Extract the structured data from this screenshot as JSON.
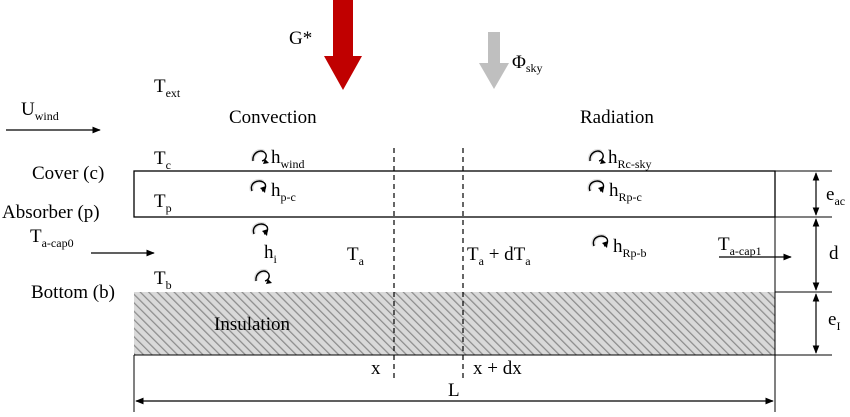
{
  "labels": {
    "g_star": "G*",
    "phi_sky": "Φ",
    "phi_sky_sub": "sky",
    "t_ext": "T",
    "t_ext_sub": "ext",
    "u_wind": "U",
    "u_wind_sub": "wind",
    "convection": "Convection",
    "radiation": "Radiation",
    "cover": "Cover (c)",
    "absorber": "Absorber (p)",
    "bottom": "Bottom (b)",
    "t_c": "T",
    "t_c_sub": "c",
    "t_p": "T",
    "t_p_sub": "p",
    "t_b": "T",
    "t_b_sub": "b",
    "h_wind": "h",
    "h_wind_sub": "wind",
    "h_pc": "h",
    "h_pc_sub": "p-c",
    "h_i": "h",
    "h_i_sub": "i",
    "h_rc_sky": "h",
    "h_rc_sky_sub": "Rc-sky",
    "h_rp_c": "h",
    "h_rp_c_sub": "Rp-c",
    "h_rp_b": "h",
    "h_rp_b_sub": "Rp-b",
    "t_a_cap0": "T",
    "t_a_cap0_sub": "a-cap0",
    "t_a_cap1": "T",
    "t_a_cap1_sub": "a-cap1",
    "t_a": "T",
    "t_a_sub": "a",
    "t_a_dt_a": "T",
    "t_a_dt_sub1": "a",
    "t_a_dt_mid": " + dT",
    "t_a_dt_sub2": "a",
    "insulation": "Insulation",
    "x": "x",
    "x_dx": "x + dx",
    "length": "L",
    "e_ac": "e",
    "e_ac_sub": "ac",
    "d": "d",
    "e_i": "e",
    "e_i_sub": "I"
  },
  "colors": {
    "solar_arrow": "#c00000",
    "sky_arrow": "#bfbfbf",
    "line": "#000000",
    "hatch": "#8c8c8c"
  },
  "icons": {
    "flux_arrow": "curved-arrow-icon"
  }
}
